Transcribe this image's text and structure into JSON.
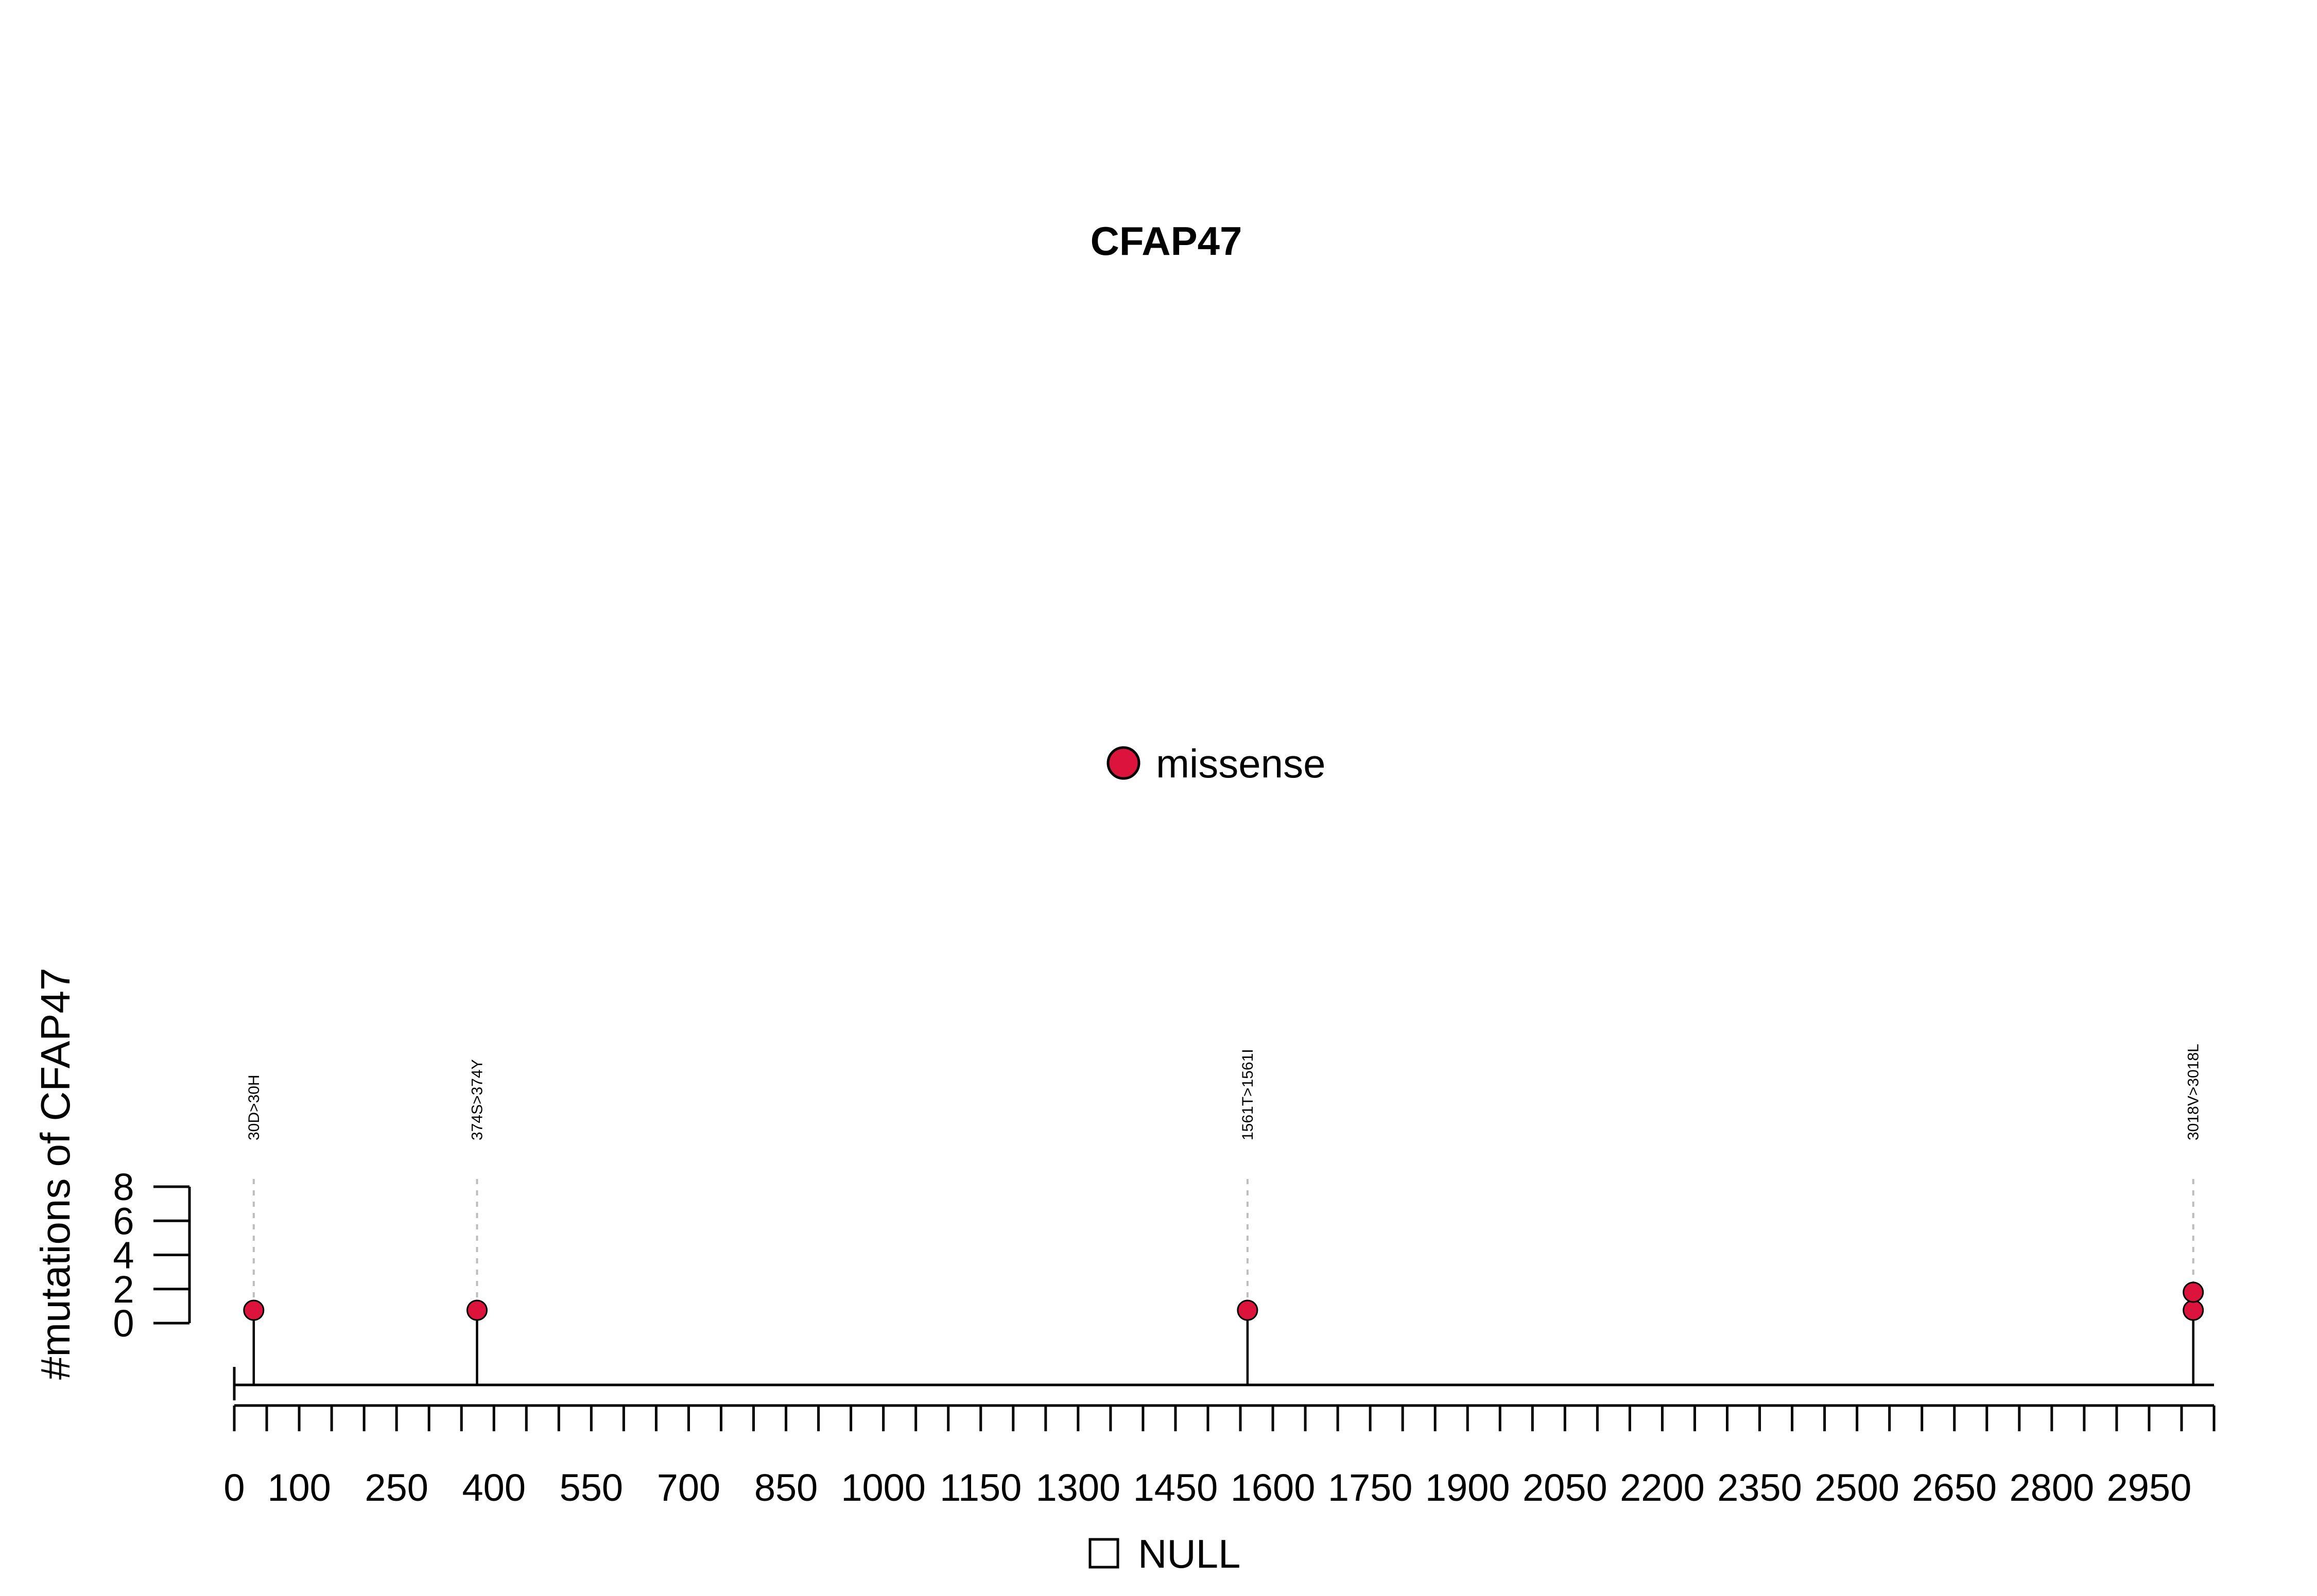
{
  "chart_data": {
    "type": "lollipop",
    "title": "CFAP47",
    "ylabel": "#mutations of CFAP47",
    "xlabel": "",
    "xlim": [
      0,
      3050
    ],
    "ylim": [
      0,
      8
    ],
    "y_ticks": [
      "0",
      "2",
      "4",
      "6",
      "8"
    ],
    "x_tick_labels": [
      {
        "value": 0,
        "label": "0"
      },
      {
        "value": 100,
        "label": "100"
      },
      {
        "value": 250,
        "label": "250"
      },
      {
        "value": 400,
        "label": "400"
      },
      {
        "value": 550,
        "label": "550"
      },
      {
        "value": 700,
        "label": "700"
      },
      {
        "value": 850,
        "label": "850"
      },
      {
        "value": 1000,
        "label": "1000"
      },
      {
        "value": 1150,
        "label": "1150"
      },
      {
        "value": 1300,
        "label": "1300"
      },
      {
        "value": 1450,
        "label": "1450"
      },
      {
        "value": 1600,
        "label": "1600"
      },
      {
        "value": 1750,
        "label": "1750"
      },
      {
        "value": 1900,
        "label": "1900"
      },
      {
        "value": 2050,
        "label": "2050"
      },
      {
        "value": 2200,
        "label": "2200"
      },
      {
        "value": 2350,
        "label": "2350"
      },
      {
        "value": 2500,
        "label": "2500"
      },
      {
        "value": 2650,
        "label": "2650"
      },
      {
        "value": 2800,
        "label": "2800"
      },
      {
        "value": 2950,
        "label": "2950"
      }
    ],
    "x_minor_tick_step": 50,
    "mutations": [
      {
        "position": 30,
        "count": 1,
        "label": "30D>30H",
        "type": "missense"
      },
      {
        "position": 374,
        "count": 1,
        "label": "374S>374Y",
        "type": "missense"
      },
      {
        "position": 1561,
        "count": 1,
        "label": "1561T>1561I",
        "type": "missense"
      },
      {
        "position": 3018,
        "count": 2,
        "label": "3018V>3018L",
        "type": "missense"
      }
    ],
    "legend_top": [
      {
        "label": "missense",
        "color": "#dc143c",
        "marker": "circle"
      }
    ],
    "legend_bottom": [
      {
        "label": "NULL",
        "color": "#ffffff",
        "marker": "square"
      }
    ],
    "grid": false
  }
}
